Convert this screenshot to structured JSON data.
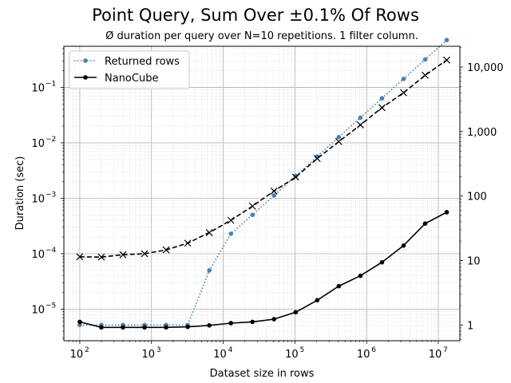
{
  "chart_data": {
    "type": "line",
    "title": "Point Query, Sum Over ±0.1% Of Rows",
    "subtitle": "Ø duration per query over N=10 repetitions. 1 filter column.",
    "xlabel": "Dataset size in rows",
    "ylabel": "Duration (sec)",
    "x_scale": "log",
    "y_scale": "log",
    "xlim": [
      60,
      20000000
    ],
    "ylim": [
      2.7e-06,
      0.55
    ],
    "y2_scale": "log",
    "y2lim": [
      0.57,
      21000
    ],
    "x_ticks": [
      {
        "value": 100,
        "base": "10",
        "exp": "2"
      },
      {
        "value": 1000,
        "base": "10",
        "exp": "3"
      },
      {
        "value": 10000,
        "base": "10",
        "exp": "4"
      },
      {
        "value": 100000,
        "base": "10",
        "exp": "5"
      },
      {
        "value": 1000000,
        "base": "10",
        "exp": "6"
      },
      {
        "value": 10000000,
        "base": "10",
        "exp": "7"
      }
    ],
    "y_ticks": [
      {
        "value": 1e-05,
        "base": "10",
        "exp": "−5"
      },
      {
        "value": 0.0001,
        "base": "10",
        "exp": "−4"
      },
      {
        "value": 0.001,
        "base": "10",
        "exp": "−3"
      },
      {
        "value": 0.01,
        "base": "10",
        "exp": "−2"
      },
      {
        "value": 0.1,
        "base": "10",
        "exp": "−1"
      }
    ],
    "y2_ticks": [
      {
        "value": 1,
        "label": "1"
      },
      {
        "value": 10,
        "label": "10"
      },
      {
        "value": 100,
        "label": "100"
      },
      {
        "value": 1000,
        "label": "1,000"
      },
      {
        "value": 10000,
        "label": "10,000"
      }
    ],
    "x": [
      100,
      200,
      400,
      800,
      1600,
      3200,
      6400,
      12800,
      25600,
      51200,
      102400,
      204800,
      409600,
      819200,
      1638400,
      3276800,
      6553600,
      13107200
    ],
    "series": [
      {
        "name": "Returned rows",
        "axis": "right",
        "color": "#4682b4",
        "style": "dotted",
        "marker": "dot",
        "values": [
          1,
          1,
          1,
          1,
          1,
          1,
          7,
          26,
          51,
          102,
          205,
          410,
          820,
          1640,
          3277,
          6554,
          13107,
          26214
        ]
      },
      {
        "name": "NanoCube",
        "axis": "left",
        "color": "#000000",
        "style": "solid",
        "marker": "dot",
        "values": [
          5.9e-06,
          4.7e-06,
          4.7e-06,
          4.7e-06,
          4.7e-06,
          4.8e-06,
          5.1e-06,
          5.6e-06,
          5.9e-06,
          6.6e-06,
          8.8e-06,
          1.45e-05,
          2.6e-05,
          4e-05,
          7e-05,
          0.00014,
          0.00035,
          0.00056
        ]
      },
      {
        "name": "",
        "axis": "left",
        "color": "#000000",
        "style": "dashed",
        "marker": "x",
        "values": [
          8.8e-05,
          8.7e-05,
          9.6e-05,
          0.0001,
          0.000117,
          0.000155,
          0.00024,
          0.0004,
          0.00072,
          0.00135,
          0.0024,
          0.0052,
          0.0105,
          0.021,
          0.043,
          0.08,
          0.165,
          0.31
        ]
      }
    ],
    "legend": [
      "Returned rows",
      "NanoCube"
    ],
    "legend_position": "top-left",
    "grid": true
  }
}
